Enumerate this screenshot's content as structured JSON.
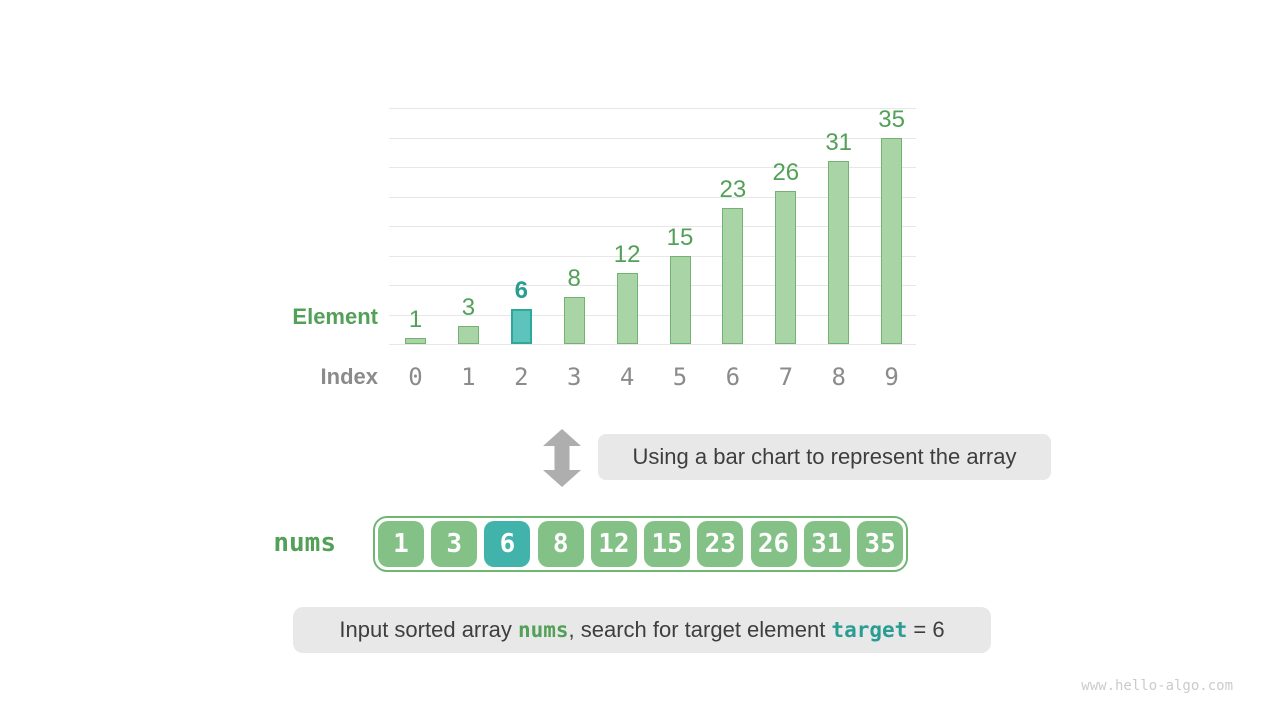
{
  "chart_data": {
    "type": "bar",
    "categories": [
      "0",
      "1",
      "2",
      "3",
      "4",
      "5",
      "6",
      "7",
      "8",
      "9"
    ],
    "values": [
      1,
      3,
      6,
      8,
      12,
      15,
      23,
      26,
      31,
      35
    ],
    "highlight_index": 2,
    "title": "",
    "xlabel": "Index",
    "ylabel": "Element",
    "ylim": [
      0,
      40
    ],
    "grid_step": 5,
    "grid": "on",
    "legend": "none"
  },
  "axis_labels": {
    "element": "Element",
    "index": "Index"
  },
  "annotation": {
    "arrow_icon": "up-down-arrow-icon",
    "text": "Using a bar chart to represent the array"
  },
  "array": {
    "label": "nums",
    "values": [
      1,
      3,
      6,
      8,
      12,
      15,
      23,
      26,
      31,
      35
    ],
    "highlight_index": 2
  },
  "caption": {
    "prefix": "Input sorted array ",
    "nums_code": "nums",
    "middle": ", search for target element ",
    "target_code": "target",
    "suffix": " = 6"
  },
  "watermark": "www.hello-algo.com",
  "colors": {
    "green_text": "#53a058",
    "teal_text": "#2a9d93",
    "gray_text": "#8b8b8b",
    "grid": "#e7e7e7",
    "bar_fill": "#a9d4a6",
    "bar_border": "#74b273",
    "highlight_fill": "#5ec3ba",
    "highlight_border": "#2ca89d",
    "cell_fill": "#84c187",
    "cell_highlight": "#42b3ab",
    "array_border": "#70b673",
    "box_bg": "#e8e8e8",
    "box_text": "#3e3e3e",
    "arrow": "#aeaeae",
    "watermark": "#cbcbcb"
  }
}
